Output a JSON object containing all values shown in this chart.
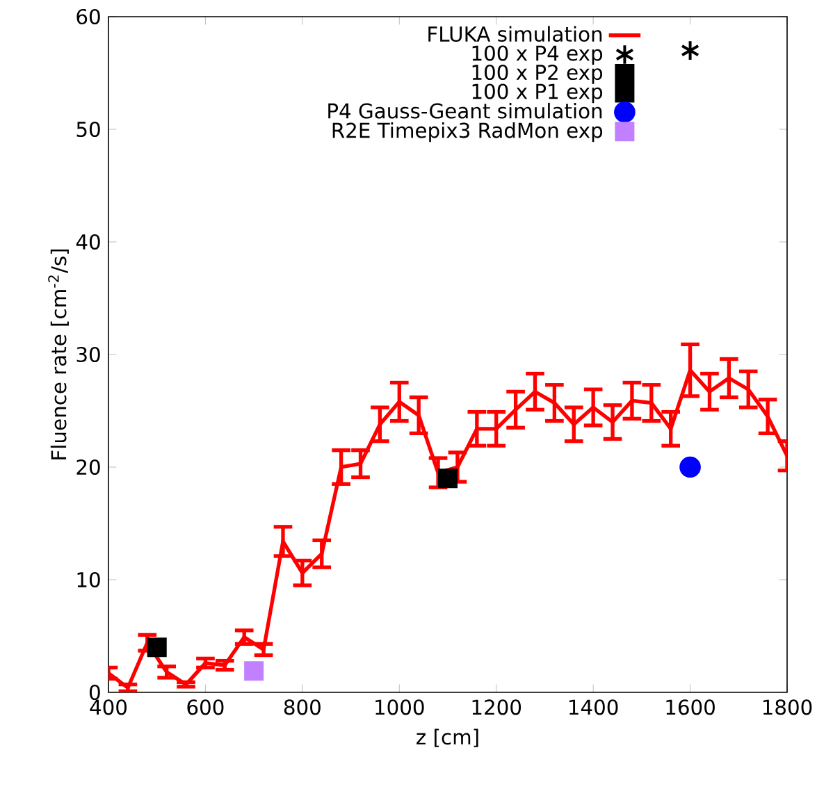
{
  "chart_data": {
    "type": "line",
    "xlabel": "z [cm]",
    "ylabel": "Fluence rate [cm$^{-2}$/s]",
    "xlim": [
      400,
      1800
    ],
    "ylim": [
      0,
      60
    ],
    "xticks": [
      400,
      600,
      800,
      1000,
      1200,
      1400,
      1600,
      1800
    ],
    "yticks": [
      0,
      10,
      20,
      30,
      40,
      50,
      60
    ],
    "grid": false,
    "legend": "top right",
    "series": [
      {
        "name": "FLUKA simulation",
        "color": "#ff0000",
        "marker": "none",
        "line_style": "solid",
        "x": [
          400,
          440,
          480,
          520,
          560,
          600,
          640,
          680,
          720,
          760,
          800,
          840,
          880,
          920,
          960,
          1000,
          1040,
          1080,
          1120,
          1160,
          1200,
          1240,
          1280,
          1320,
          1360,
          1400,
          1440,
          1480,
          1520,
          1560,
          1600,
          1640,
          1680,
          1720,
          1760,
          1800
        ],
        "values": [
          1.7,
          0.4,
          4.4,
          1.8,
          0.7,
          2.6,
          2.4,
          4.9,
          3.8,
          13.4,
          10.6,
          12.3,
          20,
          20.3,
          23.8,
          25.8,
          24.6,
          19.5,
          20,
          23.4,
          23.4,
          25.1,
          26.7,
          25.7,
          23.8,
          25.3,
          24,
          25.9,
          25.7,
          23.4,
          28.6,
          26.7,
          27.9,
          26.9,
          24.5,
          21
        ],
        "errors": [
          0.5,
          0.3,
          0.7,
          0.5,
          0.2,
          0.4,
          0.4,
          0.6,
          0.5,
          1.3,
          1.1,
          1.2,
          1.5,
          1.2,
          1.5,
          1.7,
          1.6,
          1.3,
          1.3,
          1.5,
          1.5,
          1.6,
          1.6,
          1.6,
          1.5,
          1.6,
          1.5,
          1.6,
          1.6,
          1.5,
          2.3,
          1.6,
          1.7,
          1.6,
          1.5,
          1.3
        ]
      },
      {
        "name": "100 x P4 exp",
        "type": "scatter",
        "color": "#000000",
        "marker": "cross",
        "x": [
          1600
        ],
        "values": [
          57
        ]
      },
      {
        "name": "100 x P2 exp",
        "type": "scatter",
        "color": "#000000",
        "marker": "square",
        "x": [
          1100
        ],
        "values": [
          19
        ]
      },
      {
        "name": "100 x P1 exp",
        "type": "scatter",
        "color": "#000000",
        "marker": "square",
        "x": [
          500
        ],
        "values": [
          4
        ]
      },
      {
        "name": "P4 Gauss-Geant simulation",
        "type": "scatter",
        "color": "#0000ff",
        "marker": "circle",
        "x": [
          1600
        ],
        "values": [
          20
        ]
      },
      {
        "name": "R2E Timepix3 RadMon exp",
        "type": "scatter",
        "color": "#c080ff",
        "marker": "square",
        "x": [
          700
        ],
        "values": [
          1.9
        ]
      }
    ]
  }
}
